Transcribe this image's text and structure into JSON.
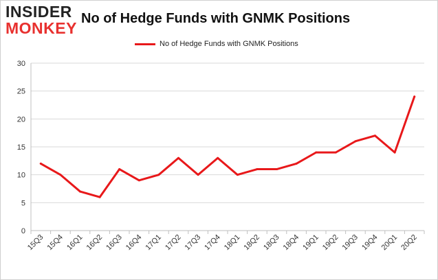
{
  "logo": {
    "line1": "INSIDER",
    "line2": "MONKEY"
  },
  "chart_data": {
    "type": "line",
    "title": "No of Hedge Funds with GNMK Positions",
    "xlabel": "",
    "ylabel": "",
    "categories": [
      "15Q3",
      "15Q4",
      "16Q1",
      "16Q2",
      "16Q3",
      "16Q4",
      "17Q1",
      "17Q2",
      "17Q3",
      "17Q4",
      "18Q1",
      "18Q2",
      "18Q3",
      "18Q4",
      "19Q1",
      "19Q2",
      "19Q3",
      "19Q4",
      "20Q1",
      "20Q2"
    ],
    "series": [
      {
        "name": "No of Hedge Funds with GNMK Positions",
        "color": "#e8181a",
        "values": [
          12,
          10,
          7,
          6,
          11,
          9,
          10,
          13,
          10,
          13,
          10,
          11,
          11,
          12,
          14,
          14,
          16,
          17,
          14,
          24
        ]
      }
    ],
    "ylim": [
      0,
      30
    ],
    "yticks": [
      0,
      5,
      10,
      15,
      20,
      25,
      30
    ],
    "grid": true,
    "legend_position": "top-center"
  }
}
